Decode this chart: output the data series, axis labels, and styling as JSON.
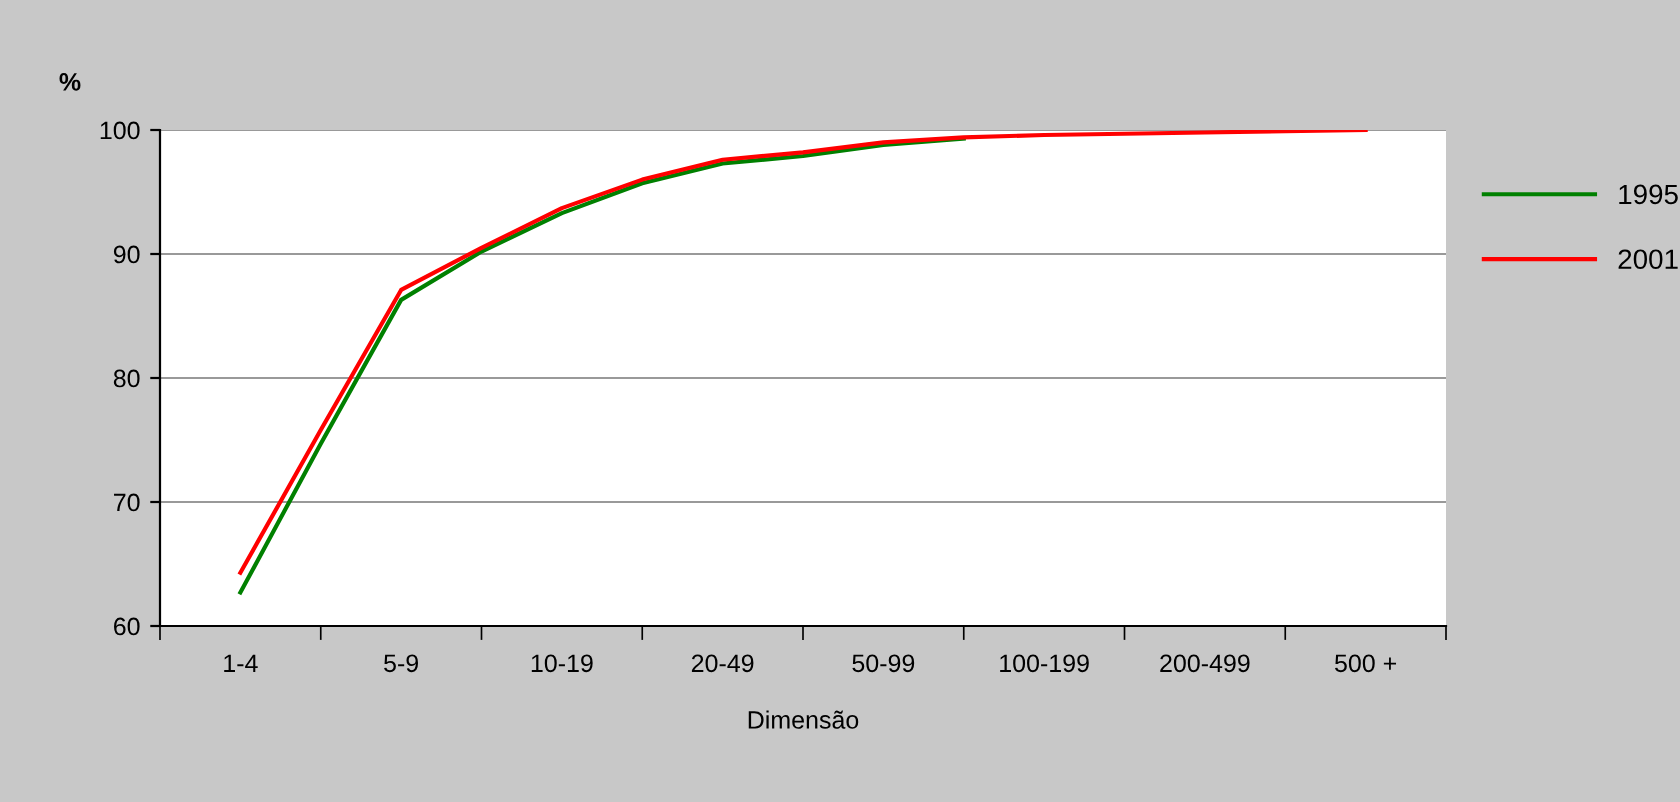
{
  "chart_data": {
    "type": "line",
    "ylabel": "%",
    "xlabel": "Dimensão",
    "categories": [
      "1-4",
      null,
      "5-9",
      null,
      "10-19",
      null,
      "20-49",
      null,
      "50-99",
      null,
      "100-199",
      null,
      "200-499",
      null,
      "500 +"
    ],
    "series": [
      {
        "name": "1995",
        "color": "#008000",
        "values": [
          62.7,
          74.7,
          86.3,
          90.2,
          93.3,
          95.7,
          97.3,
          97.9,
          98.8,
          99.3,
          null,
          null,
          null,
          null,
          null
        ]
      },
      {
        "name": "2001",
        "color": "#ff0000",
        "values": [
          64.3,
          75.8,
          87.1,
          90.5,
          93.7,
          96.0,
          97.6,
          98.2,
          99.0,
          99.4,
          99.6,
          99.7,
          99.8,
          99.9,
          100
        ]
      }
    ],
    "ylim": [
      60,
      100
    ],
    "yticks": [
      60,
      70,
      80,
      90,
      100
    ],
    "grid": "y",
    "legend": "right",
    "marker": "none",
    "line_style": "solid"
  }
}
